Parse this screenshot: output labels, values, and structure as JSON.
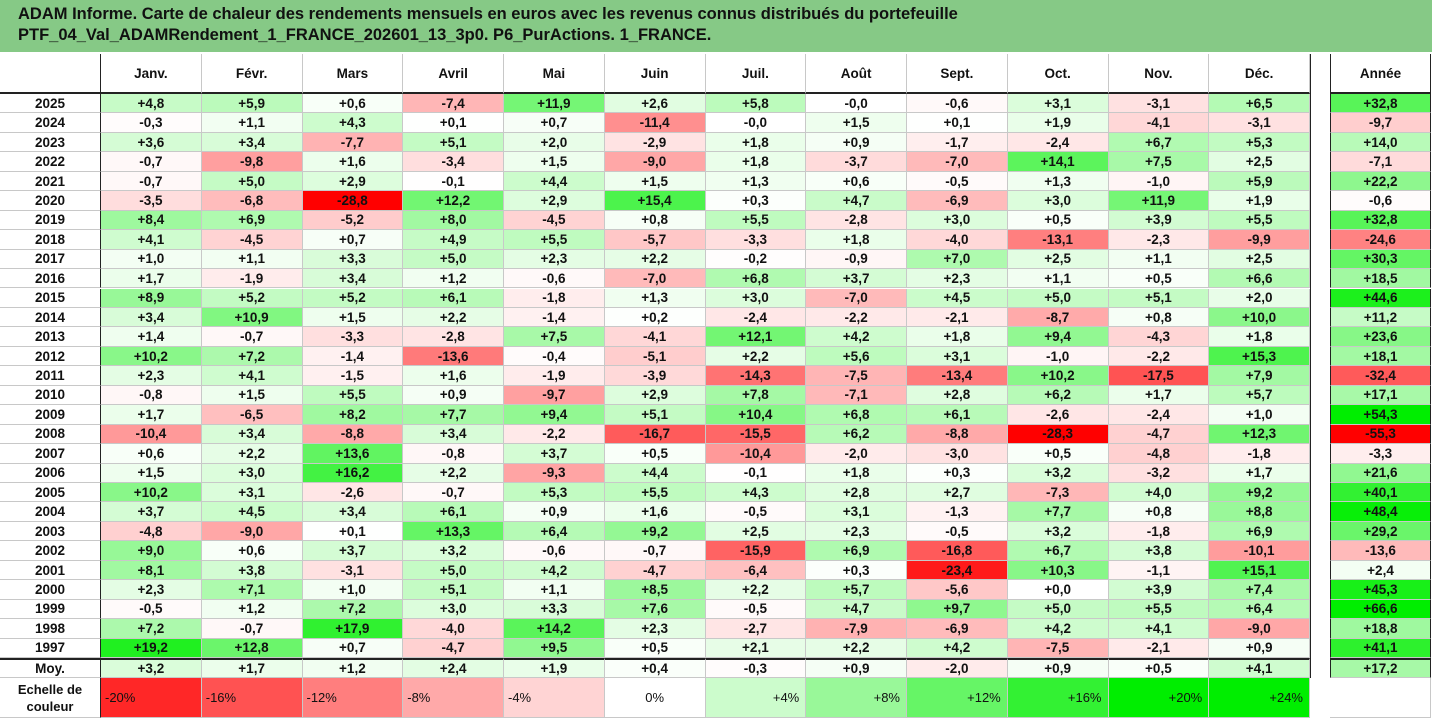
{
  "title_line1": "ADAM Informe. Carte de chaleur des rendements mensuels en euros avec les revenus connus distribués du portefeuille",
  "title_line2": "PTF_04_Val_ADAMRendement_1_FRANCE_202601_13_3p0. P6_PurActions. 1_FRANCE.",
  "corner_text": "",
  "chart_data": {
    "type": "heatmap",
    "months": [
      "Janv.",
      "Févr.",
      "Mars",
      "Avril",
      "Mai",
      "Juin",
      "Juil.",
      "Août",
      "Sept.",
      "Oct.",
      "Nov.",
      "Déc."
    ],
    "annual_header": "Année",
    "rows": [
      {
        "year": "2025",
        "values": [
          "+4,8",
          "+5,9",
          "+0,6",
          "-7,4",
          "+11,9",
          "+2,6",
          "+5,8",
          "-0,0",
          "-0,6",
          "+3,1",
          "-3,1",
          "+6,5"
        ],
        "annual": "+32,8"
      },
      {
        "year": "2024",
        "values": [
          "-0,3",
          "+1,1",
          "+4,3",
          "+0,1",
          "+0,7",
          "-11,4",
          "-0,0",
          "+1,5",
          "+0,1",
          "+1,9",
          "-4,1",
          "-3,1"
        ],
        "annual": "-9,7"
      },
      {
        "year": "2023",
        "values": [
          "+3,6",
          "+3,4",
          "-7,7",
          "+5,1",
          "+2,0",
          "-2,9",
          "+1,8",
          "+0,9",
          "-1,7",
          "-2,4",
          "+6,7",
          "+5,3"
        ],
        "annual": "+14,0"
      },
      {
        "year": "2022",
        "values": [
          "-0,7",
          "-9,8",
          "+1,6",
          "-3,4",
          "+1,5",
          "-9,0",
          "+1,8",
          "-3,7",
          "-7,0",
          "+14,1",
          "+7,5",
          "+2,5"
        ],
        "annual": "-7,1"
      },
      {
        "year": "2021",
        "values": [
          "-0,7",
          "+5,0",
          "+2,9",
          "-0,1",
          "+4,4",
          "+1,5",
          "+1,3",
          "+0,6",
          "-0,5",
          "+1,3",
          "-1,0",
          "+5,9"
        ],
        "annual": "+22,2"
      },
      {
        "year": "2020",
        "values": [
          "-3,5",
          "-6,8",
          "-28,8",
          "+12,2",
          "+2,9",
          "+15,4",
          "+0,3",
          "+4,7",
          "-6,9",
          "+3,0",
          "+11,9",
          "+1,9"
        ],
        "annual": "-0,6"
      },
      {
        "year": "2019",
        "values": [
          "+8,4",
          "+6,9",
          "-5,2",
          "+8,0",
          "-4,5",
          "+0,8",
          "+5,5",
          "-2,8",
          "+3,0",
          "+0,5",
          "+3,9",
          "+5,5"
        ],
        "annual": "+32,8"
      },
      {
        "year": "2018",
        "values": [
          "+4,1",
          "-4,5",
          "+0,7",
          "+4,9",
          "+5,5",
          "-5,7",
          "-3,3",
          "+1,8",
          "-4,0",
          "-13,1",
          "-2,3",
          "-9,9"
        ],
        "annual": "-24,6"
      },
      {
        "year": "2017",
        "values": [
          "+1,0",
          "+1,1",
          "+3,3",
          "+5,0",
          "+2,3",
          "+2,2",
          "-0,2",
          "-0,9",
          "+7,0",
          "+2,5",
          "+1,1",
          "+2,5"
        ],
        "annual": "+30,3"
      },
      {
        "year": "2016",
        "values": [
          "+1,7",
          "-1,9",
          "+3,4",
          "+1,2",
          "-0,6",
          "-7,0",
          "+6,8",
          "+3,7",
          "+2,3",
          "+1,1",
          "+0,5",
          "+6,6"
        ],
        "annual": "+18,5"
      },
      {
        "year": "2015",
        "values": [
          "+8,9",
          "+5,2",
          "+5,2",
          "+6,1",
          "-1,8",
          "+1,3",
          "+3,0",
          "-7,0",
          "+4,5",
          "+5,0",
          "+5,1",
          "+2,0"
        ],
        "annual": "+44,6"
      },
      {
        "year": "2014",
        "values": [
          "+3,4",
          "+10,9",
          "+1,5",
          "+2,2",
          "-1,4",
          "+0,2",
          "-2,4",
          "-2,2",
          "-2,1",
          "-8,7",
          "+0,8",
          "+10,0"
        ],
        "annual": "+11,2"
      },
      {
        "year": "2013",
        "values": [
          "+1,4",
          "-0,7",
          "-3,3",
          "-2,8",
          "+7,5",
          "-4,1",
          "+12,1",
          "+4,2",
          "+1,8",
          "+9,4",
          "-4,3",
          "+1,8"
        ],
        "annual": "+23,6"
      },
      {
        "year": "2012",
        "values": [
          "+10,2",
          "+7,2",
          "-1,4",
          "-13,6",
          "-0,4",
          "-5,1",
          "+2,2",
          "+5,6",
          "+3,1",
          "-1,0",
          "-2,2",
          "+15,3"
        ],
        "annual": "+18,1"
      },
      {
        "year": "2011",
        "values": [
          "+2,3",
          "+4,1",
          "-1,5",
          "+1,6",
          "-1,9",
          "-3,9",
          "-14,3",
          "-7,5",
          "-13,4",
          "+10,2",
          "-17,5",
          "+7,9"
        ],
        "annual": "-32,4"
      },
      {
        "year": "2010",
        "values": [
          "-0,8",
          "+1,5",
          "+5,5",
          "+0,9",
          "-9,7",
          "+2,9",
          "+7,8",
          "-7,1",
          "+2,8",
          "+6,2",
          "+1,7",
          "+5,7"
        ],
        "annual": "+17,1"
      },
      {
        "year": "2009",
        "values": [
          "+1,7",
          "-6,5",
          "+8,2",
          "+7,7",
          "+9,4",
          "+5,1",
          "+10,4",
          "+6,8",
          "+6,1",
          "-2,6",
          "-2,4",
          "+1,0"
        ],
        "annual": "+54,3"
      },
      {
        "year": "2008",
        "values": [
          "-10,4",
          "+3,4",
          "-8,8",
          "+3,4",
          "-2,2",
          "-16,7",
          "-15,5",
          "+6,2",
          "-8,8",
          "-28,3",
          "-4,7",
          "+12,3"
        ],
        "annual": "-55,3"
      },
      {
        "year": "2007",
        "values": [
          "+0,6",
          "+2,2",
          "+13,6",
          "-0,8",
          "+3,7",
          "+0,5",
          "-10,4",
          "-2,0",
          "-3,0",
          "+0,5",
          "-4,8",
          "-1,8"
        ],
        "annual": "-3,3"
      },
      {
        "year": "2006",
        "values": [
          "+1,5",
          "+3,0",
          "+16,2",
          "+2,2",
          "-9,3",
          "+4,4",
          "-0,1",
          "+1,8",
          "+0,3",
          "+3,2",
          "-3,2",
          "+1,7"
        ],
        "annual": "+21,6"
      },
      {
        "year": "2005",
        "values": [
          "+10,2",
          "+3,1",
          "-2,6",
          "-0,7",
          "+5,3",
          "+5,5",
          "+4,3",
          "+2,8",
          "+2,7",
          "-7,3",
          "+4,0",
          "+9,2"
        ],
        "annual": "+40,1"
      },
      {
        "year": "2004",
        "values": [
          "+3,7",
          "+4,5",
          "+3,4",
          "+6,1",
          "+0,9",
          "+1,6",
          "-0,5",
          "+3,1",
          "-1,3",
          "+7,7",
          "+0,8",
          "+8,8"
        ],
        "annual": "+48,4"
      },
      {
        "year": "2003",
        "values": [
          "-4,8",
          "-9,0",
          "+0,1",
          "+13,3",
          "+6,4",
          "+9,2",
          "+2,5",
          "+2,3",
          "-0,5",
          "+3,2",
          "-1,8",
          "+6,9"
        ],
        "annual": "+29,2"
      },
      {
        "year": "2002",
        "values": [
          "+9,0",
          "+0,6",
          "+3,7",
          "+3,2",
          "-0,6",
          "-0,7",
          "-15,9",
          "+6,9",
          "-16,8",
          "+6,7",
          "+3,8",
          "-10,1"
        ],
        "annual": "-13,6"
      },
      {
        "year": "2001",
        "values": [
          "+8,1",
          "+3,8",
          "-3,1",
          "+5,0",
          "+4,2",
          "-4,7",
          "-6,4",
          "+0,3",
          "-23,4",
          "+10,3",
          "-1,1",
          "+15,1"
        ],
        "annual": "+2,4"
      },
      {
        "year": "2000",
        "values": [
          "+2,3",
          "+7,1",
          "+1,0",
          "+5,1",
          "+1,1",
          "+8,5",
          "+2,2",
          "+5,7",
          "-5,6",
          "+0,0",
          "+3,9",
          "+7,4"
        ],
        "annual": "+45,3"
      },
      {
        "year": "1999",
        "values": [
          "-0,5",
          "+1,2",
          "+7,2",
          "+3,0",
          "+3,3",
          "+7,6",
          "-0,5",
          "+4,7",
          "+9,7",
          "+5,0",
          "+5,5",
          "+6,4"
        ],
        "annual": "+66,6"
      },
      {
        "year": "1998",
        "values": [
          "+7,2",
          "-0,7",
          "+17,9",
          "-4,0",
          "+14,2",
          "+2,3",
          "-2,7",
          "-7,9",
          "-6,9",
          "+4,2",
          "+4,1",
          "-9,0"
        ],
        "annual": "+18,8"
      },
      {
        "year": "1997",
        "values": [
          "+19,2",
          "+12,8",
          "+0,7",
          "-4,7",
          "+9,5",
          "+0,5",
          "+2,1",
          "+2,2",
          "+4,2",
          "-7,5",
          "-2,1",
          "+0,9"
        ],
        "annual": "+41,1"
      }
    ],
    "average_label": "Moy.",
    "average_values": [
      "+3,2",
      "+1,7",
      "+1,2",
      "+2,4",
      "+1,9",
      "+0,4",
      "-0,3",
      "+0,9",
      "-2,0",
      "+0,9",
      "+0,5",
      "+4,1"
    ],
    "average_annual": "+17,2",
    "scale_label_line1": "Echelle de",
    "scale_label_line2": "couleur",
    "scale": [
      {
        "label": "-20%",
        "value": -20
      },
      {
        "label": "-16%",
        "value": -16
      },
      {
        "label": "-12%",
        "value": -12
      },
      {
        "label": "-8%",
        "value": -8
      },
      {
        "label": "-4%",
        "value": -4
      },
      {
        "label": "0%",
        "value": 0
      },
      {
        "label": "+4%",
        "value": 4
      },
      {
        "label": "+8%",
        "value": 8
      },
      {
        "label": "+12%",
        "value": 12
      },
      {
        "label": "+16%",
        "value": 16
      },
      {
        "label": "+20%",
        "value": 20
      },
      {
        "label": "+24%",
        "value": 24
      }
    ],
    "colors": {
      "negative_max": "#ff0000",
      "neutral": "#ffffff",
      "positive_max": "#00ee00",
      "title_background": "#86c986"
    }
  }
}
